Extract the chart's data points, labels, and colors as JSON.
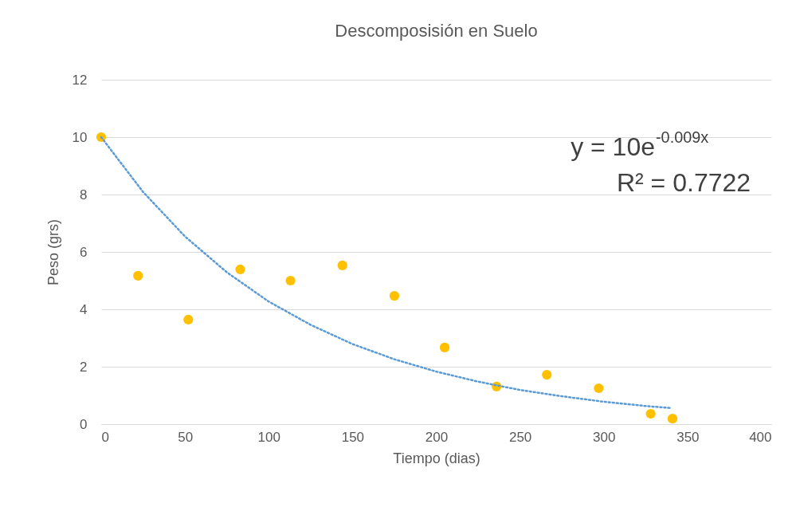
{
  "chart_data": {
    "type": "scatter",
    "title": "Descomposisión en Suelo",
    "xlabel": "Tiempo (dias)",
    "ylabel": "Peso (grs)",
    "xlim": [
      0,
      400
    ],
    "xticks": [
      0,
      50,
      100,
      150,
      200,
      250,
      300,
      350,
      400
    ],
    "ylim": [
      0,
      12
    ],
    "yticks": [
      0,
      2,
      4,
      6,
      8,
      10,
      12
    ],
    "grid": "y",
    "series": [
      {
        "color": "#ffc000",
        "marker": "circle",
        "x": [
          0,
          22,
          52,
          83,
          113,
          144,
          175,
          205,
          236,
          266,
          297,
          328,
          341
        ],
        "values": [
          10,
          5.17,
          3.64,
          5.39,
          5.0,
          5.53,
          4.47,
          2.67,
          1.31,
          1.72,
          1.25,
          0.36,
          0.19
        ]
      },
      {
        "type": "line",
        "color": "#5b9bd5",
        "line_style": "dotted",
        "x": [
          0,
          25,
          50,
          75,
          100,
          125,
          150,
          175,
          200,
          225,
          250,
          275,
          300,
          325,
          340
        ],
        "values": [
          10,
          8.09,
          6.54,
          5.29,
          4.27,
          3.46,
          2.79,
          2.26,
          1.83,
          1.48,
          1.19,
          0.97,
          0.78,
          0.63,
          0.56
        ]
      }
    ],
    "annotations": [
      "y = 10e$^{-0.009x}$",
      "R² = 0.7722"
    ]
  }
}
